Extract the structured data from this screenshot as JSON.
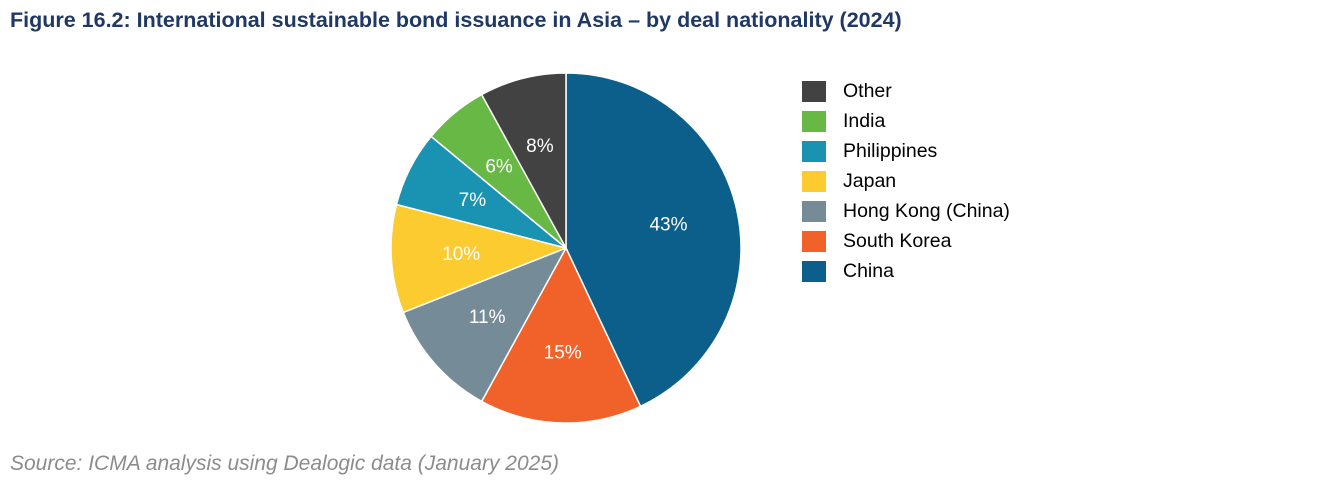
{
  "title": "Figure 16.2: International sustainable bond issuance in Asia – by deal nationality (2024)",
  "source": "Source: ICMA analysis using Dealogic data (January 2025)",
  "chart_data": {
    "type": "pie",
    "title": "Figure 16.2: International sustainable bond issuance in Asia – by deal nationality (2024)",
    "slices": [
      {
        "name": "China",
        "value": 43,
        "label": "43%",
        "color": "#0b5f8a"
      },
      {
        "name": "South Korea",
        "value": 15,
        "label": "15%",
        "color": "#f0622a"
      },
      {
        "name": "Hong Kong (China)",
        "value": 11,
        "label": "11%",
        "color": "#768b98"
      },
      {
        "name": "Japan",
        "value": 10,
        "label": "10%",
        "color": "#fbcb30"
      },
      {
        "name": "Philippines",
        "value": 7,
        "label": "7%",
        "color": "#1a93b2"
      },
      {
        "name": "India",
        "value": 6,
        "label": "6%",
        "color": "#67b845"
      },
      {
        "name": "Other",
        "value": 8,
        "label": "8%",
        "color": "#424242"
      }
    ],
    "legend": {
      "placement": "right",
      "order": [
        "Other",
        "India",
        "Philippines",
        "Japan",
        "Hong Kong (China)",
        "South Korea",
        "China"
      ]
    }
  }
}
